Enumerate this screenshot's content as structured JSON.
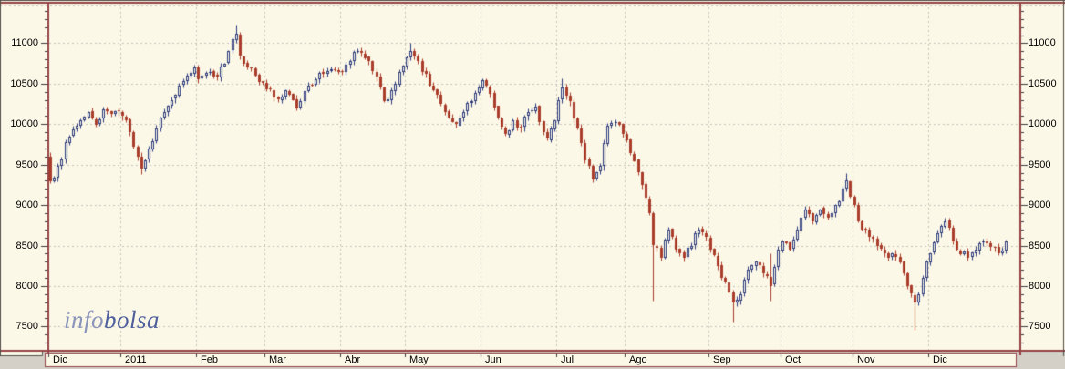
{
  "logo": {
    "info": "info",
    "bolsa": "bolsa",
    "info_color": "#8b94ba",
    "bolsa_color": "#4e5f9c"
  },
  "chart_data": {
    "type": "candlestick",
    "instrument_period": "daily candles, Dec 2010 - Dec 2011",
    "seed": 7,
    "y_axis": {
      "min": 7200,
      "max": 11500,
      "tick_step": 500,
      "minor_tick_step": 100,
      "gridline_values": [
        7500,
        8000,
        8500,
        9000,
        9500,
        10000,
        10500,
        11000
      ],
      "labels": [
        "7500",
        "8000",
        "8500",
        "9000",
        "9500",
        "10000",
        "10500",
        "11000"
      ],
      "sides": [
        "left",
        "right"
      ]
    },
    "x_axis": {
      "labels": [
        "Dic",
        "2011",
        "Feb",
        "Mar",
        "Abr",
        "May",
        "Jun",
        "Jul",
        "Ago",
        "Sep",
        "Oct",
        "Nov",
        "Dic"
      ],
      "month_start_indices": [
        0,
        19,
        39,
        57,
        77,
        94,
        114,
        134,
        152,
        174,
        193,
        212,
        232
      ],
      "total_candles": 253
    },
    "colors": {
      "background": "#fcf8e8",
      "window_gray": "#d4d0c8",
      "frame": "#954345",
      "outer_border": "#55504a",
      "grid": "#c5c4b8",
      "tick": "#3a3a3a",
      "up_outline": "#2e3c7d",
      "up_fill": "#fcf8e8",
      "down_fill": "#aa3c2b"
    },
    "price_path_anchors": [
      [
        0,
        9300
      ],
      [
        2,
        9480
      ],
      [
        5,
        9850
      ],
      [
        8,
        10050
      ],
      [
        10,
        10150
      ],
      [
        12,
        10000
      ],
      [
        14,
        10180
      ],
      [
        16,
        10120
      ],
      [
        18,
        10150
      ],
      [
        19,
        10100
      ],
      [
        20,
        10050
      ],
      [
        21,
        9900
      ],
      [
        23,
        9600
      ],
      [
        24,
        9450
      ],
      [
        25,
        9550
      ],
      [
        26,
        9700
      ],
      [
        28,
        9950
      ],
      [
        30,
        10150
      ],
      [
        32,
        10300
      ],
      [
        34,
        10480
      ],
      [
        36,
        10600
      ],
      [
        38,
        10700
      ],
      [
        39,
        10550
      ],
      [
        40,
        10600
      ],
      [
        42,
        10650
      ],
      [
        44,
        10580
      ],
      [
        46,
        10750
      ],
      [
        47,
        10900
      ],
      [
        48,
        11050
      ],
      [
        49,
        11120
      ],
      [
        50,
        10850
      ],
      [
        52,
        10700
      ],
      [
        54,
        10600
      ],
      [
        56,
        10500
      ],
      [
        58,
        10430
      ],
      [
        60,
        10300
      ],
      [
        62,
        10420
      ],
      [
        64,
        10300
      ],
      [
        65,
        10200
      ],
      [
        66,
        10280
      ],
      [
        68,
        10480
      ],
      [
        70,
        10560
      ],
      [
        72,
        10620
      ],
      [
        74,
        10680
      ],
      [
        76,
        10650
      ],
      [
        77,
        10650
      ],
      [
        79,
        10780
      ],
      [
        81,
        10900
      ],
      [
        83,
        10820
      ],
      [
        85,
        10650
      ],
      [
        87,
        10450
      ],
      [
        88,
        10280
      ],
      [
        90,
        10420
      ],
      [
        92,
        10650
      ],
      [
        94,
        10820
      ],
      [
        95,
        10900
      ],
      [
        97,
        10780
      ],
      [
        99,
        10620
      ],
      [
        101,
        10420
      ],
      [
        103,
        10250
      ],
      [
        105,
        10080
      ],
      [
        107,
        10000
      ],
      [
        109,
        10150
      ],
      [
        111,
        10280
      ],
      [
        113,
        10450
      ],
      [
        114,
        10540
      ],
      [
        116,
        10380
      ],
      [
        118,
        10080
      ],
      [
        120,
        9880
      ],
      [
        122,
        10050
      ],
      [
        124,
        9950
      ],
      [
        126,
        10150
      ],
      [
        128,
        10220
      ],
      [
        130,
        9900
      ],
      [
        131,
        9820
      ],
      [
        133,
        10050
      ],
      [
        134,
        10300
      ],
      [
        135,
        10450
      ],
      [
        137,
        10280
      ],
      [
        139,
        9950
      ],
      [
        141,
        9560
      ],
      [
        143,
        9320
      ],
      [
        145,
        9480
      ],
      [
        147,
        9980
      ],
      [
        149,
        10020
      ],
      [
        151,
        9880
      ],
      [
        152,
        9800
      ],
      [
        154,
        9550
      ],
      [
        156,
        9250
      ],
      [
        158,
        8900
      ],
      [
        159,
        8500
      ],
      [
        161,
        8350
      ],
      [
        163,
        8700
      ],
      [
        165,
        8450
      ],
      [
        167,
        8350
      ],
      [
        169,
        8500
      ],
      [
        171,
        8700
      ],
      [
        173,
        8600
      ],
      [
        174,
        8450
      ],
      [
        176,
        8250
      ],
      [
        178,
        8050
      ],
      [
        180,
        7800
      ],
      [
        182,
        7900
      ],
      [
        184,
        8200
      ],
      [
        186,
        8300
      ],
      [
        188,
        8150
      ],
      [
        190,
        8000
      ],
      [
        192,
        8450
      ],
      [
        193,
        8550
      ],
      [
        195,
        8450
      ],
      [
        197,
        8700
      ],
      [
        199,
        8950
      ],
      [
        201,
        8800
      ],
      [
        203,
        8950
      ],
      [
        205,
        8850
      ],
      [
        207,
        9000
      ],
      [
        209,
        9200
      ],
      [
        210,
        9300
      ],
      [
        211,
        9100
      ],
      [
        212,
        9000
      ],
      [
        214,
        8700
      ],
      [
        216,
        8600
      ],
      [
        218,
        8500
      ],
      [
        220,
        8400
      ],
      [
        222,
        8400
      ],
      [
        224,
        8300
      ],
      [
        225,
        8150
      ],
      [
        226,
        8000
      ],
      [
        227,
        7900
      ],
      [
        228,
        7800
      ],
      [
        229,
        7900
      ],
      [
        230,
        8100
      ],
      [
        231,
        8300
      ],
      [
        232,
        8400
      ],
      [
        234,
        8650
      ],
      [
        236,
        8800
      ],
      [
        238,
        8550
      ],
      [
        240,
        8400
      ],
      [
        242,
        8350
      ],
      [
        244,
        8450
      ],
      [
        246,
        8550
      ],
      [
        248,
        8480
      ],
      [
        250,
        8400
      ],
      [
        252,
        8550
      ]
    ],
    "extremes": [
      {
        "i": 24,
        "low": 9380
      },
      {
        "i": 49,
        "high": 11230
      },
      {
        "i": 95,
        "high": 11000
      },
      {
        "i": 135,
        "high": 10570
      },
      {
        "i": 159,
        "low": 7820
      },
      {
        "i": 180,
        "low": 7560
      },
      {
        "i": 190,
        "low": 7820,
        "high": 8400
      },
      {
        "i": 210,
        "high": 9390
      },
      {
        "i": 228,
        "low": 7460
      }
    ]
  }
}
